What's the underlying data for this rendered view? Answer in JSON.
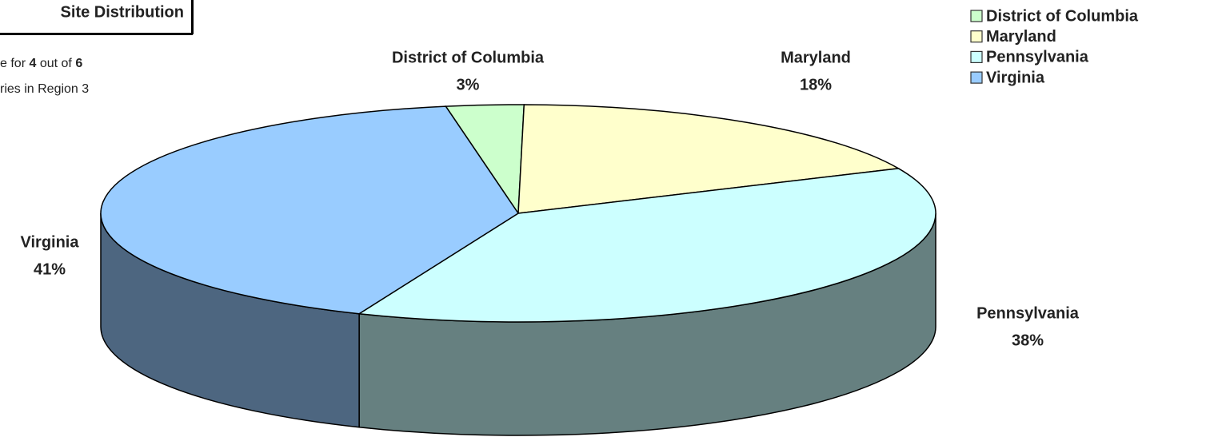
{
  "chart_data": {
    "type": "pie3d",
    "title": "Site Distribution",
    "note": {
      "line1_start": "e for",
      "count": 4,
      "line1_mid": "out of",
      "total": 6,
      "line2": "ries in Region 3"
    },
    "categories": [
      "District of Columbia",
      "Maryland",
      "Pennsylvania",
      "Virginia"
    ],
    "values": [
      3,
      18,
      38,
      41
    ],
    "value_labels": [
      "3%",
      "18%",
      "38%",
      "41%"
    ],
    "colors": [
      "#ccffcc",
      "#ffffcc",
      "#ccffff",
      "#99ccff"
    ],
    "legend": "top-right"
  }
}
